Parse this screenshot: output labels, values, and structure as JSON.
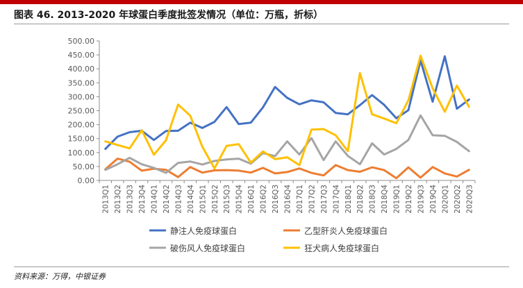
{
  "header": {
    "title": "图表 46. 2013-2020 年球蛋白季度批签发情况（单位：万瓶，折标）",
    "source": "资料来源：万得，中银证券",
    "accent_color": "#c00000"
  },
  "chart_data": {
    "type": "line",
    "title": "",
    "xlabel": "",
    "ylabel": "",
    "ylim": [
      0,
      500
    ],
    "y_ticks": [
      "0.00",
      "50.00",
      "100.00",
      "150.00",
      "200.00",
      "250.00",
      "300.00",
      "350.00",
      "400.00",
      "450.00",
      "500.00"
    ],
    "grid": false,
    "legend_position": "bottom",
    "categories": [
      "2013Q1",
      "2013Q2",
      "2013Q3",
      "2013Q4",
      "2014Q1",
      "2014Q2",
      "2014Q3",
      "2014Q4",
      "2015Q1",
      "2015Q2",
      "2015Q3",
      "2015Q4",
      "2016Q1",
      "2016Q2",
      "2016Q3",
      "2016Q4",
      "2017Q1",
      "2017Q2",
      "2017Q3",
      "2017Q4",
      "2018Q1",
      "2018Q2",
      "2018Q3",
      "2018Q4",
      "2019Q1",
      "2019Q2",
      "2019Q3",
      "2019Q4",
      "2020Q1",
      "2020Q2",
      "2020Q3"
    ],
    "series": [
      {
        "name": "静注人免疫球蛋白",
        "color": "#4472c4",
        "values": [
          113,
          157,
          173,
          178,
          145,
          177,
          178,
          207,
          188,
          210,
          263,
          202,
          207,
          262,
          335,
          296,
          273,
          287,
          280,
          242,
          237,
          270,
          306,
          271,
          223,
          252,
          430,
          282,
          445,
          257,
          290
        ]
      },
      {
        "name": "乙型肝炎人免疫球蛋白",
        "color": "#ed7d31",
        "values": [
          40,
          78,
          67,
          35,
          42,
          38,
          12,
          48,
          28,
          36,
          37,
          35,
          28,
          45,
          25,
          30,
          43,
          27,
          18,
          55,
          37,
          31,
          47,
          37,
          8,
          47,
          10,
          48,
          25,
          14,
          38
        ]
      },
      {
        "name": "破伤风人免疫球蛋白",
        "color": "#a5a5a5",
        "values": [
          38,
          58,
          81,
          58,
          45,
          27,
          63,
          68,
          57,
          70,
          75,
          78,
          60,
          98,
          87,
          140,
          93,
          152,
          73,
          140,
          88,
          58,
          133,
          93,
          113,
          145,
          233,
          162,
          160,
          138,
          105
        ]
      },
      {
        "name": "狂犬病人免疫球蛋白",
        "color": "#ffc000",
        "values": [
          140,
          127,
          115,
          180,
          92,
          144,
          272,
          232,
          121,
          43,
          124,
          130,
          64,
          104,
          76,
          83,
          55,
          182,
          184,
          162,
          105,
          385,
          237,
          222,
          205,
          287,
          447,
          330,
          246,
          340,
          264
        ]
      }
    ]
  }
}
